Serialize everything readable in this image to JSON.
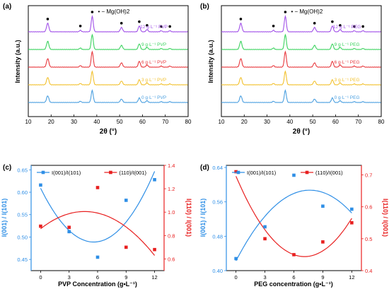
{
  "chart_data": [
    {
      "panel": "(a)",
      "type": "line",
      "xlabel": "2θ (°)",
      "ylabel": "Intensity (a.u.)",
      "xlim": [
        10,
        80
      ],
      "xticks": [
        10,
        20,
        30,
        40,
        50,
        60,
        70,
        80
      ],
      "marker_legend": "• − Mg(OH)2",
      "peak_markers_2theta": [
        18.5,
        32.8,
        38.0,
        50.8,
        58.6,
        62.0,
        68.2,
        72.0
      ],
      "series": [
        {
          "name": "0 g·L⁻¹ PVP",
          "color": "#4A9FE0"
        },
        {
          "name": "3 g·L⁻¹ PVP",
          "color": "#F2C12E"
        },
        {
          "name": "6 g·L⁻¹ PVP",
          "color": "#E8383D"
        },
        {
          "name": "9 g·L⁻¹ PVP",
          "color": "#3BD35E"
        },
        {
          "name": "12 g·L⁻¹ PVP",
          "color": "#A04FE8"
        }
      ]
    },
    {
      "panel": "(b)",
      "type": "line",
      "xlabel": "2θ (°)",
      "ylabel": "Intensity (a.u.)",
      "xlim": [
        10,
        80
      ],
      "xticks": [
        10,
        20,
        30,
        40,
        50,
        60,
        70,
        80
      ],
      "marker_legend": "• − Mg(OH)2",
      "peak_markers_2theta": [
        18.5,
        32.8,
        38.0,
        50.8,
        58.6,
        62.0,
        68.2,
        72.0
      ],
      "series": [
        {
          "name": "0 g·L⁻¹ PEG",
          "color": "#4A9FE0"
        },
        {
          "name": "3 g·L⁻¹ PEG",
          "color": "#F2C12E"
        },
        {
          "name": "6 g·L⁻¹ PEG",
          "color": "#E8383D"
        },
        {
          "name": "9 g·L⁻¹ PEG",
          "color": "#3BD35E"
        },
        {
          "name": "12 g·L⁻¹ PEG",
          "color": "#A04FE8"
        }
      ]
    },
    {
      "panel": "(c)",
      "type": "scatter",
      "xlabel": "PVP Concentration (g•L⁻¹)",
      "ylabel_left": "I(001) / I(101)",
      "ylabel_right": "I(110) / I(001)",
      "x": [
        0,
        3,
        6,
        9,
        12
      ],
      "xlim": [
        -1,
        13
      ],
      "ylim_left": [
        0.425,
        0.66
      ],
      "ylim_right": [
        0.5,
        1.4
      ],
      "yticks_left": [
        "0.45",
        "0.50",
        "0.55",
        "0.60",
        "0.65"
      ],
      "yticks_right": [
        "0.6",
        "0.8",
        "1.0",
        "1.2",
        "1.4"
      ],
      "series": [
        {
          "name": "I(001)/I(101)",
          "axis": "left",
          "color": "#2F8FE6",
          "values": [
            0.616,
            0.512,
            0.455,
            0.582,
            0.628
          ]
        },
        {
          "name": "(110)/I(001)",
          "axis": "right",
          "color": "#E82020",
          "values": [
            0.88,
            0.87,
            1.21,
            0.7,
            0.68
          ]
        }
      ]
    },
    {
      "panel": "(d)",
      "type": "scatter",
      "xlabel": "PEG concentration (g•L⁻¹)",
      "ylabel_left": "I(001) / I(101)",
      "ylabel_right": "I(110) / I(001)",
      "x": [
        0,
        3,
        6,
        9,
        12
      ],
      "xlim": [
        -1,
        13
      ],
      "ylim_left": [
        0.4,
        0.645
      ],
      "ylim_right": [
        0.4,
        0.73
      ],
      "yticks_left": [
        "0.40",
        "0.48",
        "0.56",
        "0.64"
      ],
      "yticks_right": [
        "0.4",
        "0.5",
        "0.6",
        "0.7"
      ],
      "series": [
        {
          "name": "I(001)/I(101)",
          "axis": "left",
          "color": "#2F8FE6",
          "values": [
            0.428,
            0.502,
            0.622,
            0.55,
            0.543
          ]
        },
        {
          "name": "(110)/I(001)",
          "axis": "right",
          "color": "#E82020",
          "values": [
            0.71,
            0.5,
            0.45,
            0.49,
            0.55
          ]
        }
      ]
    }
  ]
}
